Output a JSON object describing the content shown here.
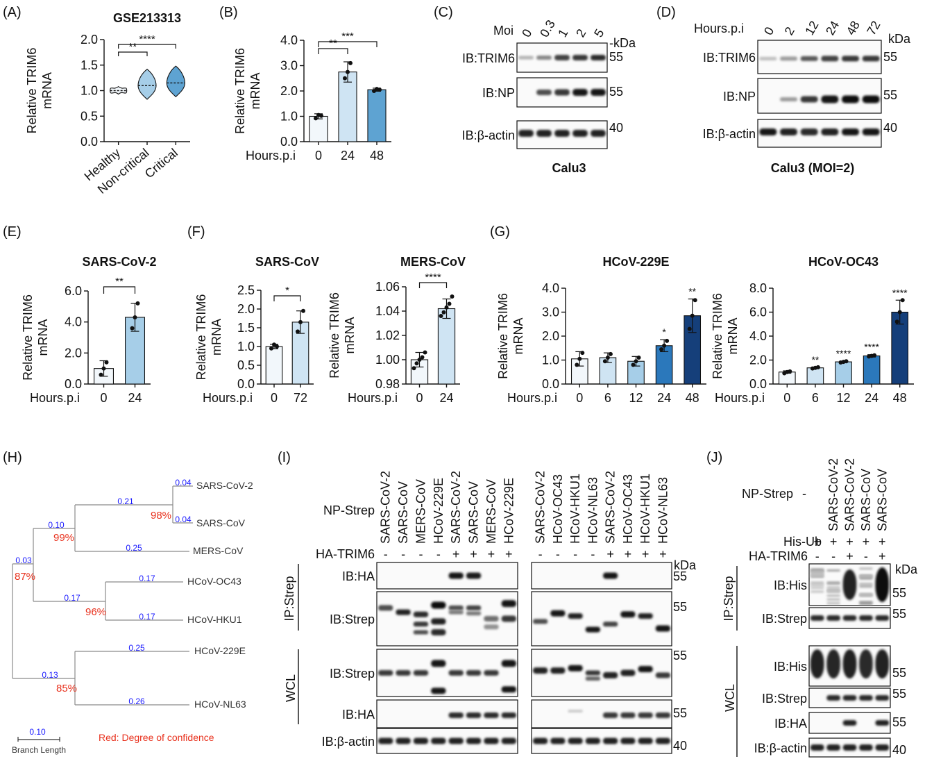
{
  "panels": {
    "A": {
      "label": "(A)",
      "title": "GSE213313",
      "ylabel": [
        "Relative TRIM6",
        "mRNA"
      ],
      "yticks": [
        "2.0",
        "1.5",
        "1.0",
        "0.5",
        "0.0"
      ],
      "groups": [
        "Healthy",
        "Non-critical",
        "Critical"
      ],
      "sig": [
        "**",
        "****"
      ]
    },
    "B": {
      "label": "(B)",
      "ylabel": [
        "Relative TRIM6",
        "mRNA"
      ],
      "yticks": [
        "4.0",
        "3.0",
        "2.0",
        "1.0",
        "0.0"
      ],
      "xtitle": "Hours.p.i",
      "xticks": [
        "0",
        "24",
        "48"
      ],
      "sig": [
        "**",
        "***"
      ]
    },
    "C": {
      "label": "(C)",
      "moi_label": "Moi",
      "moi": [
        "0",
        "0.3",
        "1",
        "2",
        "5"
      ],
      "kda": "-kDa",
      "rows": [
        "IB:TRIM6",
        "IB:NP",
        "IB:β-actin"
      ],
      "markers": [
        "55",
        "55",
        "40"
      ],
      "caption": "Calu3"
    },
    "D": {
      "label": "(D)",
      "hours_label": "Hours.p.i",
      "hours": [
        "0",
        "2",
        "12",
        "24",
        "48",
        "72"
      ],
      "kda": "kDa",
      "rows": [
        "IB:TRIM6",
        "IB:NP",
        "IB:β-actin"
      ],
      "markers": [
        "55",
        "55",
        "40"
      ],
      "caption": "Calu3 (MOI=2)"
    },
    "E": {
      "label": "(E)",
      "title": "SARS-CoV-2",
      "ylabel": [
        "Relative TRIM6",
        "mRNA"
      ],
      "yticks": [
        "6.0",
        "4.0",
        "2.0",
        "0.0"
      ],
      "xtitle": "Hours.p.i",
      "xticks": [
        "0",
        "24"
      ],
      "sig": "**"
    },
    "F": {
      "label": "(F)",
      "left": {
        "title": "SARS-CoV",
        "ylabel": [
          "Relative TRIM6",
          "mRNA"
        ],
        "yticks": [
          "2.5",
          "2.0",
          "1.5",
          "1.0",
          "0.5",
          "0.0"
        ],
        "xtitle": "Hours.p.i",
        "xticks": [
          "0",
          "72"
        ],
        "sig": "*"
      },
      "right": {
        "title": "MERS-CoV",
        "ylabel": [
          "Relative TRIM6",
          "mRNA"
        ],
        "yticks": [
          "1.06",
          "1.04",
          "1.02",
          "1.00",
          "0.98"
        ],
        "xtitle": "Hours.p.i",
        "xticks": [
          "0",
          "24"
        ],
        "sig": "****"
      }
    },
    "G": {
      "label": "(G)",
      "left": {
        "title": "HCoV-229E",
        "ylabel": [
          "Relative TRIM6",
          "mRNA"
        ],
        "yticks": [
          "4.0",
          "3.0",
          "2.0",
          "1.0",
          "0.0"
        ],
        "xtitle": "Hours.p.i",
        "xticks": [
          "0",
          "6",
          "12",
          "24",
          "48"
        ],
        "sig": [
          "",
          "",
          "",
          "*",
          "**"
        ]
      },
      "right": {
        "title": "HCoV-OC43",
        "ylabel": [
          "Relative TRIM6",
          "mRNA"
        ],
        "yticks": [
          "8.0",
          "6.0",
          "4.0",
          "2.0",
          "0.0"
        ],
        "xtitle": "Hours.p.i",
        "xticks": [
          "0",
          "6",
          "12",
          "24",
          "48"
        ],
        "sig": [
          "",
          "**",
          "****",
          "****",
          "****"
        ]
      }
    },
    "H": {
      "label": "(H)",
      "leaves": [
        "SARS-CoV-2",
        "SARS-CoV",
        "MERS-CoV",
        "HCoV-OC43",
        "HCoV-HKU1",
        "HCoV-229E",
        "HCoV-NL63"
      ],
      "branch_lengths": [
        "0.04",
        "0.04",
        "0.21",
        "0.10",
        "0.25",
        "0.03",
        "0.17",
        "0.17",
        "0.17",
        "0.25",
        "0.26",
        "0.13"
      ],
      "confidence": [
        "98%",
        "99%",
        "87%",
        "96%",
        "85%"
      ],
      "scale": "0.10",
      "scale_label": "Branch Length",
      "legend": "Red: Degree of confidence"
    },
    "I": {
      "label": "(I)",
      "np_label": "NP-Strep",
      "ha_label": "HA-TRIM6",
      "left_lanes": [
        "SARS-CoV-2",
        "SARS-CoV",
        "MERS-CoV",
        "HCoV-229E",
        "SARS-CoV-2",
        "SARS-CoV",
        "MERS-CoV",
        "HCoV-229E"
      ],
      "right_lanes": [
        "SARS-CoV-2",
        "HCoV-OC43",
        "HCoV-HKU1",
        "HCoV-NL63",
        "SARS-CoV-2",
        "HCoV-OC43",
        "HCoV-HKU1",
        "HCoV-NL63"
      ],
      "ha_signs": [
        "-",
        "-",
        "-",
        "-",
        "+",
        "+",
        "+",
        "+"
      ],
      "kda": "kDa",
      "ip": "IP:Strep",
      "wcl": "WCL",
      "rows": [
        "IB:HA",
        "IB:Strep",
        "IB:Strep",
        "IB:HA",
        "IB:β-actin"
      ],
      "markers": [
        "55",
        "55",
        "55",
        "55",
        "40"
      ]
    },
    "J": {
      "label": "(J)",
      "np_label": "NP-Strep",
      "dash": "-",
      "lanes": [
        "SARS-CoV-2",
        "SARS-CoV-2",
        "SARS-CoV",
        "SARS-CoV"
      ],
      "hisub_label": "His-Ub",
      "hisub_signs": [
        "+",
        "+",
        "+",
        "+",
        "+"
      ],
      "ha_label": "HA-TRIM6",
      "ha_signs": [
        "-",
        "-",
        "+",
        "-",
        "+"
      ],
      "kda": "kDa",
      "ip": "IP:Strep",
      "wcl": "WCL",
      "rows": [
        "IB:His",
        "IB:Strep",
        "IB:His",
        "IB:Strep",
        "IB:HA",
        "IB:β-actin"
      ],
      "markers": [
        "55",
        "55",
        "55",
        "55",
        "55",
        "40"
      ]
    }
  },
  "colors": {
    "c0": "#f2f7fb",
    "c1": "#cfe4f3",
    "c2": "#a6cee8",
    "c3": "#5ea3d2",
    "c4": "#2b78bb",
    "c5": "#153f7a",
    "branch": "#1a1aff",
    "conf": "#e8301c"
  },
  "chart_data": [
    {
      "panel": "A",
      "type": "violin",
      "title": "GSE213313",
      "categories": [
        "Healthy",
        "Non-critical",
        "Critical"
      ],
      "medians": [
        1.0,
        1.1,
        1.15
      ],
      "ranges": [
        [
          0.93,
          1.08
        ],
        [
          0.83,
          1.42
        ],
        [
          0.88,
          1.48
        ]
      ],
      "ylim": [
        0,
        2
      ]
    },
    {
      "panel": "B",
      "type": "bar",
      "categories": [
        "0",
        "24",
        "48"
      ],
      "values": [
        1.0,
        2.75,
        2.05
      ],
      "errors": [
        0.1,
        0.4,
        0.06
      ],
      "points": [
        [
          0.92,
          1.05,
          1.02
        ],
        [
          2.5,
          2.75,
          3.1
        ],
        [
          2.0,
          2.08,
          2.05
        ]
      ],
      "ylim": [
        0,
        4
      ]
    },
    {
      "panel": "E",
      "type": "bar",
      "title": "SARS-CoV-2",
      "categories": [
        "0",
        "24"
      ],
      "values": [
        1.0,
        4.3
      ],
      "errors": [
        0.5,
        0.9
      ],
      "points": [
        [
          0.6,
          1.0,
          1.4
        ],
        [
          3.6,
          4.3,
          5.2
        ]
      ],
      "ylim": [
        0,
        6
      ]
    },
    {
      "panel": "F-left",
      "type": "bar",
      "title": "SARS-CoV",
      "categories": [
        "0",
        "72"
      ],
      "values": [
        1.0,
        1.65
      ],
      "errors": [
        0.06,
        0.3
      ],
      "points": [
        [
          0.95,
          1.05,
          1.0
        ],
        [
          1.4,
          1.65,
          1.95
        ]
      ],
      "ylim": [
        0,
        2.5
      ]
    },
    {
      "panel": "F-right",
      "type": "bar",
      "title": "MERS-CoV",
      "categories": [
        "0",
        "24"
      ],
      "values": [
        1.0,
        1.042
      ],
      "errors": [
        0.006,
        0.008
      ],
      "points": [
        [
          0.993,
          0.997,
          1.0,
          1.002,
          1.006
        ],
        [
          1.036,
          1.039,
          1.043,
          1.046,
          1.052
        ]
      ],
      "ylim": [
        0.98,
        1.06
      ]
    },
    {
      "panel": "G-left",
      "type": "bar",
      "title": "HCoV-229E",
      "categories": [
        "0",
        "6",
        "12",
        "24",
        "48"
      ],
      "values": [
        1.05,
        1.1,
        0.95,
        1.6,
        2.85
      ],
      "errors": [
        0.3,
        0.2,
        0.2,
        0.25,
        0.7
      ],
      "points": [
        [
          0.8,
          1.05,
          1.3
        ],
        [
          0.95,
          1.1,
          1.25
        ],
        [
          0.8,
          0.95,
          1.1
        ],
        [
          1.45,
          1.6,
          1.8
        ],
        [
          2.3,
          2.85,
          3.5
        ]
      ],
      "ylim": [
        0,
        4
      ]
    },
    {
      "panel": "G-right",
      "type": "bar",
      "title": "HCoV-OC43",
      "categories": [
        "0",
        "6",
        "12",
        "24",
        "48"
      ],
      "values": [
        1.0,
        1.35,
        1.85,
        2.35,
        6.0
      ],
      "errors": [
        0.1,
        0.05,
        0.06,
        0.1,
        1.0
      ],
      "points": [
        [
          0.9,
          1.0,
          1.05
        ],
        [
          1.3,
          1.35,
          1.4
        ],
        [
          1.8,
          1.85,
          1.9
        ],
        [
          2.3,
          2.35,
          2.4
        ],
        [
          5.2,
          6.0,
          7.0
        ]
      ],
      "ylim": [
        0,
        8
      ]
    }
  ]
}
